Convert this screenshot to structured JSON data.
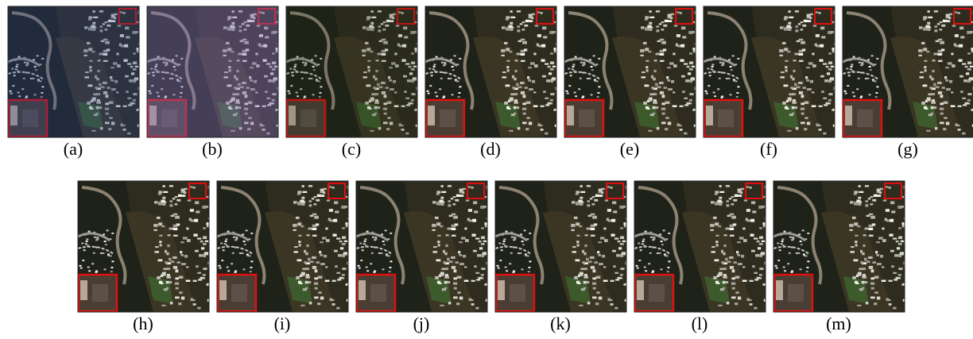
{
  "panels": [
    {
      "label": "(a)"
    },
    {
      "label": "(b)"
    },
    {
      "label": "(c)"
    },
    {
      "label": "(d)"
    },
    {
      "label": "(e)"
    },
    {
      "label": "(f)"
    },
    {
      "label": "(g)"
    },
    {
      "label": "(h)"
    },
    {
      "label": "(i)"
    },
    {
      "label": "(j)"
    },
    {
      "label": "(k)"
    },
    {
      "label": "(l)"
    },
    {
      "label": "(m)"
    }
  ]
}
